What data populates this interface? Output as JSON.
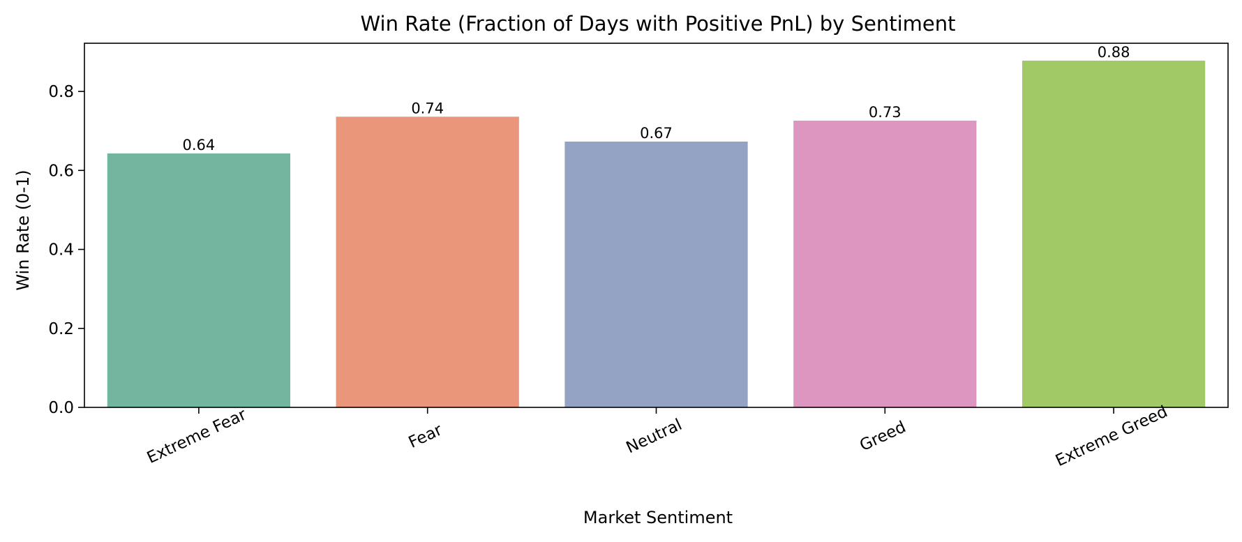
{
  "chart_data": {
    "type": "bar",
    "title": "Win Rate (Fraction of Days with Positive PnL) by Sentiment",
    "xlabel": "Market Sentiment",
    "ylabel": "Win Rate (0-1)",
    "categories": [
      "Extreme Fear",
      "Fear",
      "Neutral",
      "Greed",
      "Extreme Greed"
    ],
    "values": [
      0.643,
      0.736,
      0.673,
      0.726,
      0.878
    ],
    "value_labels": [
      "0.64",
      "0.74",
      "0.67",
      "0.73",
      "0.88"
    ],
    "colors": [
      "#73b69f",
      "#e9967a",
      "#94a3c3",
      "#dc96c0",
      "#a1c966"
    ],
    "yticks": [
      0.0,
      0.2,
      0.4,
      0.6,
      0.8
    ],
    "ytick_labels": [
      "0.0",
      "0.2",
      "0.4",
      "0.6",
      "0.8"
    ],
    "ylim": [
      0,
      0.922
    ],
    "grid": false
  }
}
